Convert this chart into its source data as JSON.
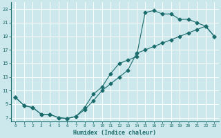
{
  "xlabel": "Humidex (Indice chaleur)",
  "bg_color": "#cce8ec",
  "grid_color": "#ffffff",
  "line_color": "#1a6b6b",
  "xlim": [
    -0.5,
    23.5
  ],
  "ylim": [
    6.5,
    24
  ],
  "xticks": [
    0,
    1,
    2,
    3,
    4,
    5,
    6,
    7,
    8,
    9,
    10,
    11,
    12,
    13,
    14,
    15,
    16,
    17,
    18,
    19,
    20,
    21,
    22,
    23
  ],
  "yticks": [
    7,
    9,
    11,
    13,
    15,
    17,
    19,
    21,
    23
  ],
  "curve1_x": [
    0,
    1,
    2,
    3,
    4,
    5,
    6,
    7,
    8,
    9,
    10,
    11,
    12,
    13,
    14,
    15,
    16,
    17,
    18,
    19,
    20,
    21,
    22,
    23
  ],
  "curve1_y": [
    10,
    8.8,
    8.5,
    7.5,
    7.5,
    7.0,
    6.9,
    7.2,
    8.2,
    9.5,
    11.0,
    12.0,
    13.0,
    14.0,
    16.5,
    17.0,
    17.5,
    18.0,
    18.5,
    19.0,
    19.5,
    20.0,
    20.5,
    19.0
  ],
  "curve2_x": [
    0,
    1,
    2,
    3,
    4,
    5,
    6,
    7,
    8,
    9,
    10,
    11,
    12,
    13,
    14,
    15,
    16,
    17,
    18,
    19,
    20,
    21,
    22,
    23
  ],
  "curve2_y": [
    10,
    8.8,
    8.5,
    7.5,
    7.5,
    7.0,
    6.9,
    7.2,
    8.5,
    10.5,
    11.5,
    13.5,
    15.0,
    15.5,
    16.0,
    22.5,
    22.8,
    22.3,
    22.3,
    21.5,
    21.5,
    21.0,
    20.5,
    19.0
  ],
  "markersize": 2.5
}
